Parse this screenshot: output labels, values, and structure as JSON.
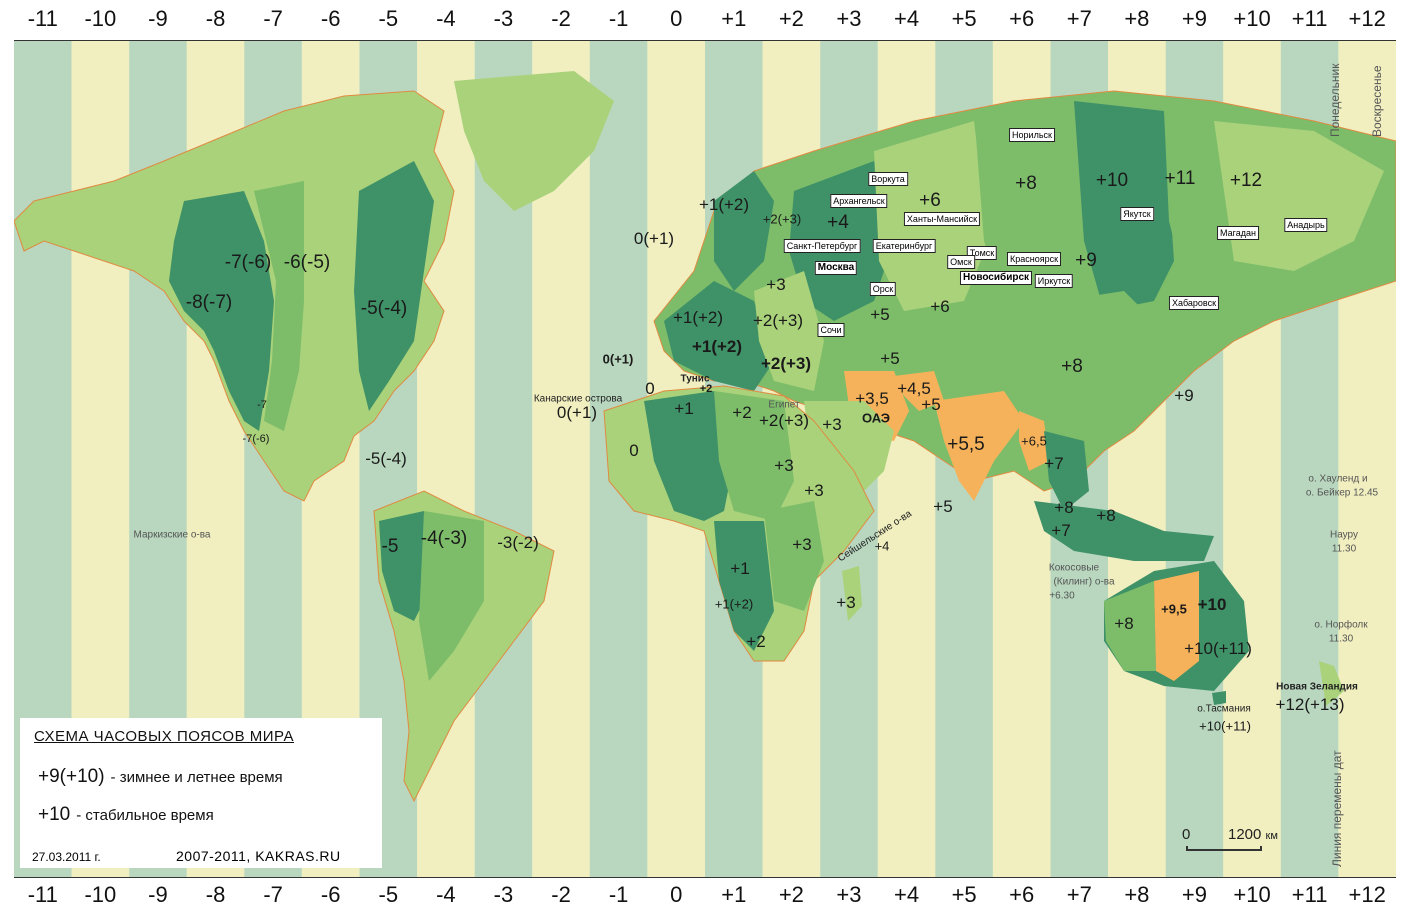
{
  "top_zones": [
    "-11",
    "-10",
    "-9",
    "-8",
    "-7",
    "-6",
    "-5",
    "-4",
    "-3",
    "-2",
    "-1",
    "0",
    "+1",
    "+2",
    "+3",
    "+4",
    "+5",
    "+6",
    "+7",
    "+8",
    "+9",
    "+10",
    "+11",
    "+12"
  ],
  "bottom_zones": [
    "-11",
    "-10",
    "-9",
    "-8",
    "-7",
    "-6",
    "-5",
    "-4",
    "-3",
    "-2",
    "-1",
    "0",
    "+1",
    "+2",
    "+3",
    "+4",
    "+5",
    "+6",
    "+7",
    "+8",
    "+9",
    "+10",
    "+11",
    "+12"
  ],
  "colors": {
    "ocean_light": "#f1efc0",
    "ocean_dark": "#b9d7bf",
    "land_light": "#a9d27a",
    "land_mid": "#7dbd6a",
    "land_dark": "#3f9167",
    "half_hour": "#f6b25a",
    "border": "#e08a40"
  },
  "zone_labels": {
    "na_alaska": "-8(-7)",
    "na_mountain": "-7(-6)",
    "na_central": "-6(-5)",
    "na_eastern": "-5(-4)",
    "pacific_mex": "-7",
    "mex_small": "-7(-6)",
    "caribbean": "-5(-4)",
    "sa_west": "-5",
    "sa_mid": "-4(-3)",
    "sa_east": "-3(-2)",
    "atlantic": "0(+1)",
    "europe_w": "+1(+2)",
    "europe_central": "+1(+2)",
    "europe_n": "+1(+2)",
    "europe_e": "+2(+3)",
    "finland": "+2(+3)",
    "ukraine": "+3",
    "uk": "0(+1)",
    "portugal": "0",
    "africa_w": "0",
    "africa_n": "+1",
    "africa_central": "+2",
    "egypt": "+2(+3)",
    "arabia": "+3",
    "east_africa": "+3",
    "horn": "+3",
    "africa_e": "+3",
    "congo": "+1",
    "angola": "+1(+2)",
    "south_africa": "+2",
    "madagascar": "+3",
    "russia_w": "+4",
    "russia_ural": "+6",
    "russia_n": "+8",
    "russia_e": "+10",
    "russia_far": "+11",
    "chukotka": "+12",
    "siberia_mid": "+9",
    "kazakh_w": "+5",
    "kazakh_e": "+6",
    "iran": "+3,5",
    "afghan": "+4,5",
    "pakistan": "+5",
    "india": "+5,5",
    "myanmar": "+6,5",
    "china": "+8",
    "japan": "+9",
    "thailand": "+7",
    "malaysia": "+8",
    "indonesia_w": "+7",
    "indonesia_e": "+8",
    "caucasus": "+5",
    "australia_w": "+8",
    "australia_c": "+9,5",
    "australia_e": "+10",
    "australia_se": "+10(+11)",
    "maldives": "+5",
    "seychelles": "+4",
    "tasmania": "+10(+11)",
    "nz": "+12(+13)",
    "canary": "0(+1)",
    "morocco": "0(+1)",
    "tunis_val": "+2"
  },
  "cities": {
    "vorkuta": "Воркута",
    "arkhangelsk": "Архангельск",
    "khanty": "Ханты-Мансийск",
    "spb": "Санкт-Петербург",
    "ekb": "Екатеринбург",
    "moscow": "Москва",
    "tomsk": "Томск",
    "omsk": "Омск",
    "krasnoyarsk": "Красноярск",
    "novosibirsk": "Новосибирск",
    "irkutsk": "Иркутск",
    "orsk": "Орск",
    "sochi": "Сочи",
    "norilsk": "Норильск",
    "yakutsk": "Якутск",
    "magadan": "Магадан",
    "anadyr": "Анадырь",
    "khabarovsk": "Хабаровск",
    "uae": "ОАЭ"
  },
  "places": {
    "canary": "Канарские острова",
    "tunis": "Тунис",
    "egypt": "Египет",
    "markiz": "Маркизские о-ва",
    "seychelles": "Сейшельские о-ва",
    "cocos": "Кокосовые",
    "cocos2": "(Килинг) о-ва",
    "cocos_tz": "+6.30",
    "howland": "о. Хауленд и",
    "baker": "о. Бейкер 12.45",
    "nauru": "Науру",
    "nauru_tz": "11.30",
    "norfolk": "о. Норфолк",
    "norfolk_tz": "11.30",
    "tasmania": "о.Тасмания",
    "nz": "Новая Зеландия"
  },
  "vertical_labels": {
    "monday": "Понедельник",
    "sunday": "Воскресенье",
    "dateline": "Линия перемены дат"
  },
  "legend": {
    "title": "СХЕМА  ЧАСОВЫХ ПОЯСОВ  МИРА",
    "row1_value": "+9(+10)",
    "row1_text": "- зимнее и летнее время",
    "row2_value": "+10",
    "row2_text": "- стабильное время",
    "date": "27.03.2011 г.",
    "credit": "2007-2011,  KAKRAS.RU"
  },
  "scale": {
    "zero": "0",
    "distance": "1200",
    "unit": "км"
  }
}
